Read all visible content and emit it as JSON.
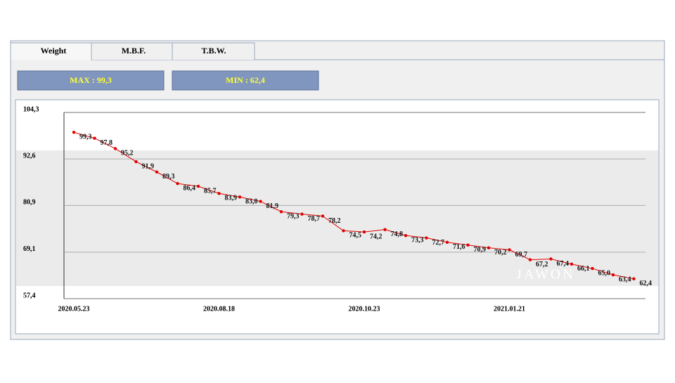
{
  "tabs": [
    "Weight",
    "M.B.F.",
    "T.B.W."
  ],
  "stats": [
    "MAX : 99,3",
    "MIN : 62,4"
  ],
  "watermark": "JAWON",
  "chart_data": {
    "type": "line",
    "categories": [
      "2020.05.23",
      null,
      null,
      null,
      null,
      null,
      null,
      "2020.08.18",
      null,
      null,
      null,
      null,
      null,
      null,
      "2020.10.23",
      null,
      null,
      null,
      null,
      null,
      null,
      "2021.01.21",
      null,
      null,
      null,
      null,
      null,
      null
    ],
    "values": [
      99.3,
      97.8,
      95.2,
      91.9,
      89.3,
      86.4,
      85.7,
      83.9,
      83.0,
      81.9,
      79.3,
      78.7,
      78.2,
      74.5,
      74.2,
      74.8,
      73.3,
      72.7,
      71.6,
      70.9,
      70.2,
      69.7,
      67.2,
      67.4,
      66.1,
      65.0,
      63.4,
      62.4
    ],
    "value_labels": [
      "99,3",
      "97,8",
      "95,2",
      "91,9",
      "89,3",
      "86,4",
      "85,7",
      "83,9",
      "83,0",
      "81,9",
      "79,3",
      "78,7",
      "78,2",
      "74,5",
      "74,2",
      "74,8",
      "73,3",
      "72,7",
      "71,6",
      "70,9",
      "70,2",
      "69,7",
      "67,2",
      "67,4",
      "66,1",
      "65,0",
      "63,4",
      "62,4"
    ],
    "color": "#e00000",
    "ylim": [
      57.4,
      104.3
    ],
    "yticks": [
      {
        "value": 104.3,
        "label": "104,3"
      },
      {
        "value": 92.6,
        "label": "92,6"
      },
      {
        "value": 80.9,
        "label": "80,9"
      },
      {
        "value": 69.1,
        "label": "69,1"
      },
      {
        "value": 57.4,
        "label": "57,4"
      }
    ],
    "grid": true
  }
}
